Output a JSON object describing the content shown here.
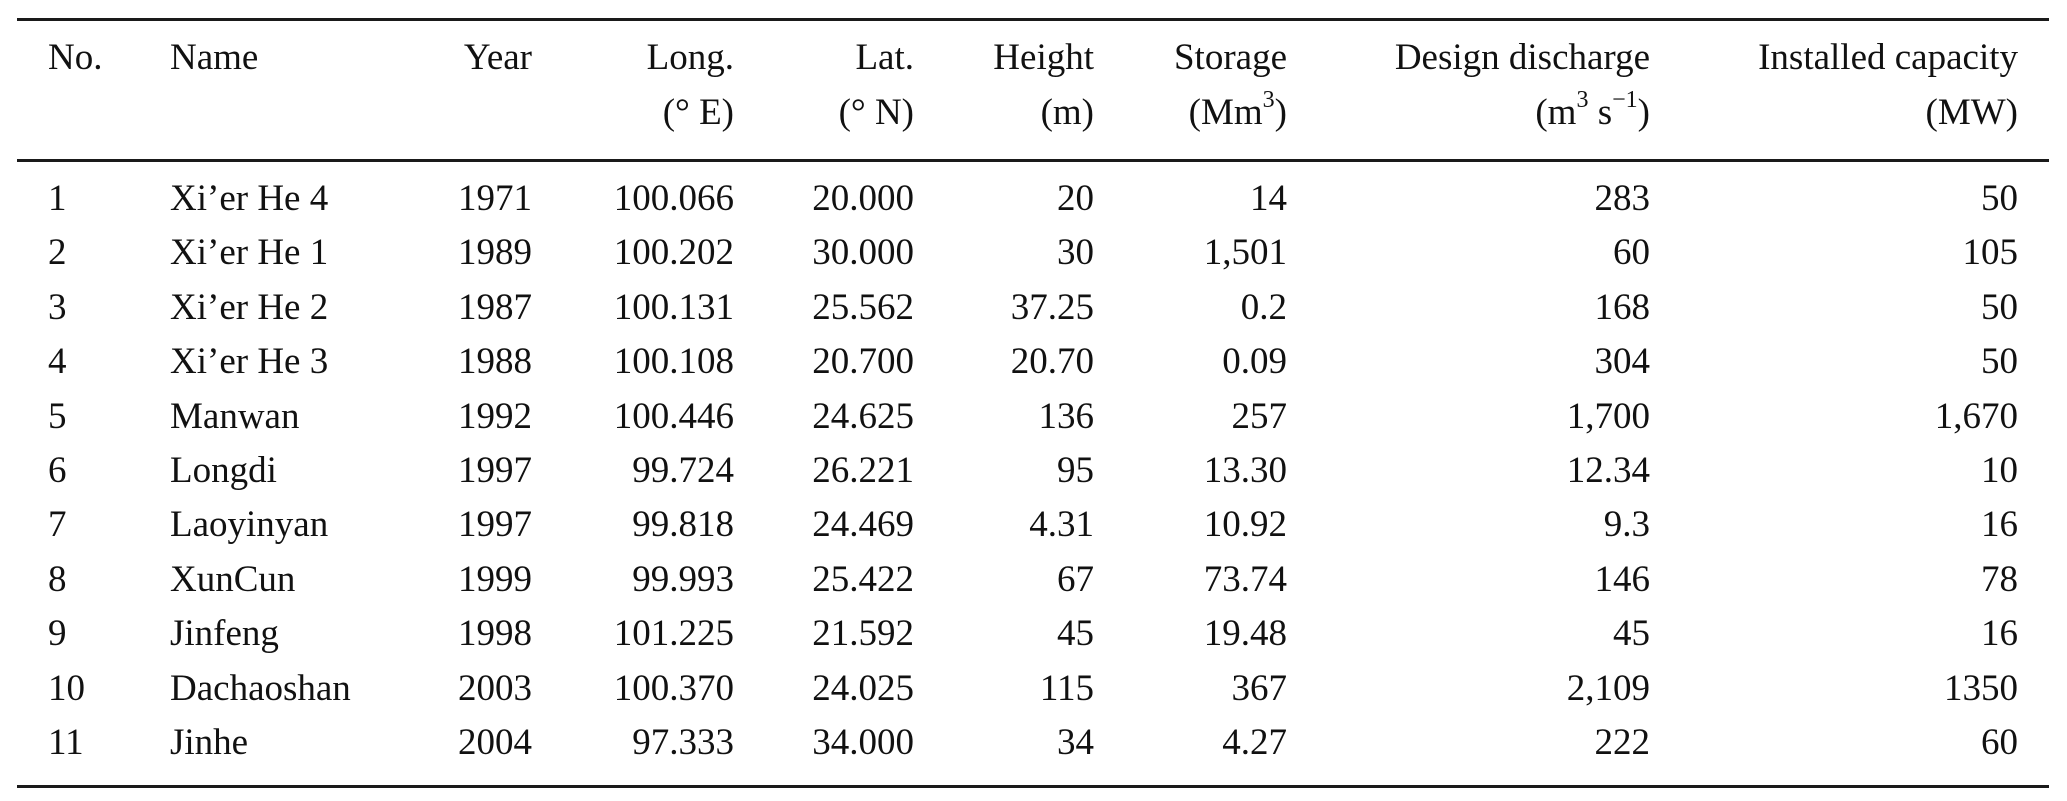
{
  "table": {
    "columns": [
      {
        "key": "no",
        "line1": "No.",
        "line2": "",
        "align": "left"
      },
      {
        "key": "name",
        "line1": "Name",
        "line2": "",
        "align": "left"
      },
      {
        "key": "year",
        "line1": "Year",
        "line2": "",
        "align": "right"
      },
      {
        "key": "long",
        "line1": "Long.",
        "line2": "(° E)",
        "align": "right"
      },
      {
        "key": "lat",
        "line1": "Lat.",
        "line2": "(° N)",
        "align": "right"
      },
      {
        "key": "height",
        "line1": "Height",
        "line2": "(m)",
        "align": "right"
      },
      {
        "key": "storage",
        "line1": "Storage",
        "line2_pre": "(Mm",
        "line2_sup": "3",
        "line2_post": ")",
        "align": "right"
      },
      {
        "key": "discharge",
        "line1": "Design discharge",
        "line2_pre": "(m",
        "line2_sup": "3",
        "line2_mid": " s",
        "line2_sup2": "−1",
        "line2_post": ")",
        "align": "right"
      },
      {
        "key": "capacity",
        "line1": "Installed capacity",
        "line2": "(MW)",
        "align": "right"
      }
    ],
    "rows": [
      {
        "no": "1",
        "name": "Xi’er He 4",
        "year": "1971",
        "long": "100.066",
        "lat": "20.000",
        "height": "20",
        "storage": "14",
        "discharge": "283",
        "capacity": "50"
      },
      {
        "no": "2",
        "name": "Xi’er He 1",
        "year": "1989",
        "long": "100.202",
        "lat": "30.000",
        "height": "30",
        "storage": "1,501",
        "discharge": "60",
        "capacity": "105"
      },
      {
        "no": "3",
        "name": "Xi’er He 2",
        "year": "1987",
        "long": "100.131",
        "lat": "25.562",
        "height": "37.25",
        "storage": "0.2",
        "discharge": "168",
        "capacity": "50"
      },
      {
        "no": "4",
        "name": "Xi’er He 3",
        "year": "1988",
        "long": "100.108",
        "lat": "20.700",
        "height": "20.70",
        "storage": "0.09",
        "discharge": "304",
        "capacity": "50"
      },
      {
        "no": "5",
        "name": "Manwan",
        "year": "1992",
        "long": "100.446",
        "lat": "24.625",
        "height": "136",
        "storage": "257",
        "discharge": "1,700",
        "capacity": "1,670"
      },
      {
        "no": "6",
        "name": "Longdi",
        "year": "1997",
        "long": "99.724",
        "lat": "26.221",
        "height": "95",
        "storage": "13.30",
        "discharge": "12.34",
        "capacity": "10"
      },
      {
        "no": "7",
        "name": "Laoyinyan",
        "year": "1997",
        "long": "99.818",
        "lat": "24.469",
        "height": "4.31",
        "storage": "10.92",
        "discharge": "9.3",
        "capacity": "16"
      },
      {
        "no": "8",
        "name": "XunCun",
        "year": "1999",
        "long": "99.993",
        "lat": "25.422",
        "height": "67",
        "storage": "73.74",
        "discharge": "146",
        "capacity": "78"
      },
      {
        "no": "9",
        "name": "Jinfeng",
        "year": "1998",
        "long": "101.225",
        "lat": "21.592",
        "height": "45",
        "storage": "19.48",
        "discharge": "45",
        "capacity": "16"
      },
      {
        "no": "10",
        "name": "Dachaoshan",
        "year": "2003",
        "long": "100.370",
        "lat": "24.025",
        "height": "115",
        "storage": "367",
        "discharge": "2,109",
        "capacity": "1350"
      },
      {
        "no": "11",
        "name": "Jinhe",
        "year": "2004",
        "long": "97.333",
        "lat": "34.000",
        "height": "34",
        "storage": "4.27",
        "discharge": "222",
        "capacity": "60"
      }
    ]
  }
}
